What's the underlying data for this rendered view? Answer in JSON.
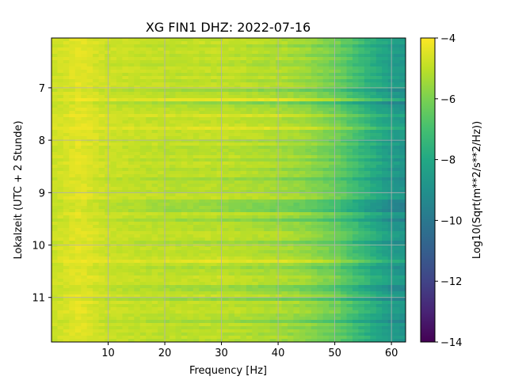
{
  "chart_data": {
    "type": "heatmap",
    "title": "XG FIN1  DHZ: 2022-07-16",
    "xlabel": "Frequency [Hz]",
    "ylabel": "Lokalzeit (UTC + 2 Stunde)",
    "colorbar_label": "Log10(Sqrt(m**2/s**2/Hz))",
    "colormap": "viridis",
    "xlim": [
      0,
      62.5
    ],
    "ylim": [
      11.85,
      6.05
    ],
    "y_inverted": true,
    "clim": [
      -14,
      -4
    ],
    "x_ticks": [
      10,
      20,
      30,
      40,
      50,
      60
    ],
    "y_ticks": [
      7,
      8,
      9,
      10,
      11
    ],
    "colorbar_ticks": [
      -4,
      -6,
      -8,
      -10,
      -12,
      -14
    ],
    "colorbar_tick_labels": [
      "−4",
      "−6",
      "−8",
      "−10",
      "−12",
      "−14"
    ],
    "grid": true,
    "value_profile_by_frequency": {
      "frequency_hz": [
        0,
        5,
        10,
        20,
        30,
        40,
        45,
        50,
        55,
        60,
        62.5
      ],
      "log10_amplitude": [
        -4.8,
        -4.4,
        -4.8,
        -5.0,
        -5.0,
        -5.3,
        -5.6,
        -6.2,
        -7.4,
        -8.5,
        -8.8
      ]
    }
  }
}
